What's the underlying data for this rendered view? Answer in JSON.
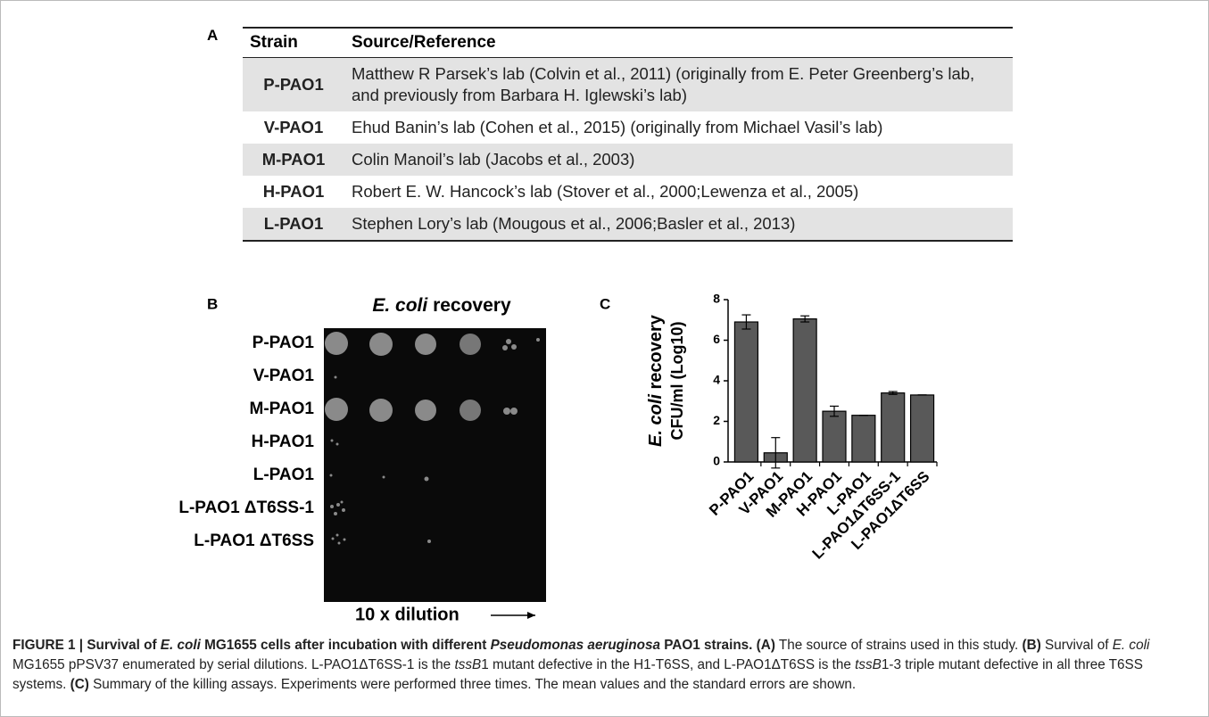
{
  "panel_a": {
    "letter": "A",
    "header": [
      "Strain",
      "Source/Reference"
    ],
    "rows": [
      [
        "P-PAO1",
        "Matthew R Parsek’s lab (Colvin et al., 2011) (originally from E. Peter Greenberg’s lab, and previously from Barbara H. Iglewski’s lab)"
      ],
      [
        "V-PAO1",
        "Ehud Banin’s lab (Cohen et al., 2015) (originally from Michael Vasil’s lab)"
      ],
      [
        "M-PAO1",
        "Colin Manoil’s lab (Jacobs et al., 2003)"
      ],
      [
        "H-PAO1",
        "Robert E. W. Hancock’s lab (Stover et al., 2000;Lewenza et al., 2005)"
      ],
      [
        "L-PAO1",
        "Stephen Lory’s lab (Mougous et al., 2006;Basler et al., 2013)"
      ]
    ]
  },
  "panel_b": {
    "letter": "B",
    "title": [
      "E. coli",
      "recovery"
    ],
    "rows": [
      "P-PAO1",
      "V-PAO1",
      "M-PAO1",
      "H-PAO1",
      "L-PAO1",
      "L-PAO1 ΔT6SS-1",
      "L-PAO1 ΔT6SS"
    ],
    "footer": "10 x dilution"
  },
  "chart_data": {
    "type": "bar",
    "letter": "C",
    "y_label": [
      "E. coli",
      "recovery",
      "CFU/ml (Log10)"
    ],
    "categories": [
      "P-PAO1",
      "V-PAO1",
      "M-PAO1",
      "H-PAO1",
      "L-PAO1",
      "L-PAO1ΔT6SS-1",
      "L-PAO1ΔT6SS"
    ],
    "values": [
      6.9,
      0.45,
      7.05,
      2.5,
      2.3,
      3.4,
      3.3
    ],
    "errors": [
      0.35,
      0.75,
      0.15,
      0.25,
      0,
      0.07,
      0
    ],
    "color": "#595959",
    "ylim": [
      0,
      8
    ],
    "yticks": [
      0,
      2,
      4,
      6,
      8
    ]
  },
  "caption": {
    "parts": [
      "FIGURE 1 | Survival of ",
      "E. coli",
      " MG1655 cells after incubation with different ",
      "Pseudomonas aeruginosa",
      " PAO1 strains.",
      "(A)",
      " The source of strains used in this study. ",
      "(B)",
      " Survival of ",
      "E. coli",
      " MG1655 pPSV37 enumerated by serial dilutions. L-PAO1ΔT6SS-1 is the ",
      "tssB",
      "1 mutant defective in the H1-T6SS, and L-PAO1ΔT6SS is the ",
      "tssB",
      "1-3 triple mutant defective in all three T6SS systems. ",
      "(C)",
      " Summary of the killing assays. Experiments were performed three times. The mean values and the standard errors are shown."
    ]
  }
}
